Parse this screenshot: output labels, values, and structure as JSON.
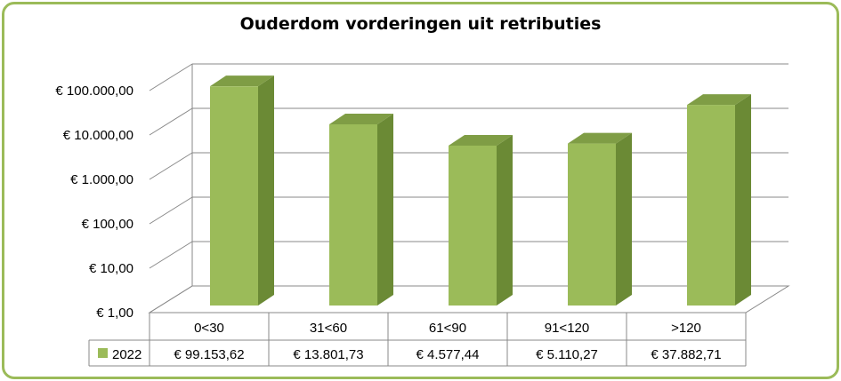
{
  "chart_data": {
    "type": "bar",
    "title": "Ouderdom vorderingen uit retributies",
    "categories": [
      "0<30",
      "31<60",
      "61<90",
      "91<120",
      ">120"
    ],
    "series": [
      {
        "name": "2022",
        "values": [
          99153.62,
          13801.73,
          4577.44,
          5110.27,
          37882.71
        ],
        "value_labels": [
          "€ 99.153,62",
          "€ 13.801,73",
          "€ 4.577,44",
          "€ 5.110,27",
          "€ 37.882,71"
        ]
      }
    ],
    "y_scale": "log",
    "ylim": [
      1,
      100000
    ],
    "y_ticks": [
      1,
      10,
      100,
      1000,
      10000,
      100000
    ],
    "y_tick_labels": [
      "€ 1,00",
      "€ 10,00",
      "€ 100,00",
      "€ 1.000,00",
      "€ 10.000,00",
      "€ 100.000,00"
    ],
    "grid": true,
    "legend": "data-table",
    "colors": {
      "bar_front": "#9bbb59",
      "bar_side": "#6b8a35",
      "bar_top": "#7f9d45",
      "frame": "#9bbb59"
    }
  }
}
